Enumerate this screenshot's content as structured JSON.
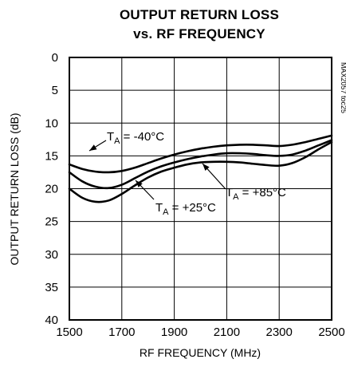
{
  "chart_data": {
    "type": "line",
    "title_lines": [
      "OUTPUT RETURN LOSS",
      "vs. RF FREQUENCY"
    ],
    "xlabel": "RF FREQUENCY (MHz)",
    "ylabel": "OUTPUT RETURN LOSS (dB)",
    "side_note": "MAX2057 toc25",
    "xlim": [
      1500,
      2500
    ],
    "ylim": [
      0,
      40
    ],
    "y_inverted": true,
    "x_ticks": [
      1500,
      1700,
      1900,
      2100,
      2300,
      2500
    ],
    "y_ticks": [
      0,
      5,
      10,
      15,
      20,
      25,
      30,
      35,
      40
    ],
    "grid": true,
    "series": [
      {
        "name": "T_A = -40°C",
        "x": [
          1500,
          1550,
          1600,
          1650,
          1700,
          1750,
          1800,
          1850,
          1900,
          1950,
          2000,
          2050,
          2100,
          2150,
          2200,
          2250,
          2300,
          2350,
          2400,
          2450,
          2500
        ],
        "values": [
          16.3,
          17.0,
          17.4,
          17.5,
          17.3,
          16.8,
          16.1,
          15.4,
          14.8,
          14.3,
          13.9,
          13.6,
          13.4,
          13.3,
          13.3,
          13.4,
          13.5,
          13.3,
          12.9,
          12.4,
          11.9
        ]
      },
      {
        "name": "T_A = +25°C",
        "x": [
          1500,
          1550,
          1600,
          1650,
          1700,
          1750,
          1800,
          1850,
          1900,
          1950,
          2000,
          2050,
          2100,
          2150,
          2200,
          2250,
          2300,
          2350,
          2400,
          2450,
          2500
        ],
        "values": [
          17.5,
          18.9,
          19.7,
          19.9,
          19.4,
          18.4,
          17.4,
          16.6,
          16.0,
          15.5,
          15.1,
          14.8,
          14.6,
          14.6,
          14.7,
          14.9,
          15.0,
          14.8,
          14.2,
          13.4,
          12.6
        ]
      },
      {
        "name": "T_A = +85°C",
        "x": [
          1500,
          1550,
          1600,
          1650,
          1700,
          1750,
          1800,
          1850,
          1900,
          1950,
          2000,
          2050,
          2100,
          2150,
          2200,
          2250,
          2300,
          2350,
          2400,
          2450,
          2500
        ],
        "values": [
          20.0,
          21.4,
          22.0,
          21.8,
          20.8,
          19.5,
          18.3,
          17.4,
          16.8,
          16.3,
          16.0,
          15.9,
          15.9,
          16.0,
          16.2,
          16.4,
          16.5,
          16.1,
          15.2,
          14.0,
          12.9
        ]
      }
    ],
    "annotations": [
      {
        "main": "T",
        "sub": "A",
        "rest": " = -40°C",
        "series": 0
      },
      {
        "main": "T",
        "sub": "A",
        "rest": " = +25°C",
        "series": 1
      },
      {
        "main": "T",
        "sub": "A",
        "rest": " = +85°C",
        "series": 2
      }
    ]
  }
}
